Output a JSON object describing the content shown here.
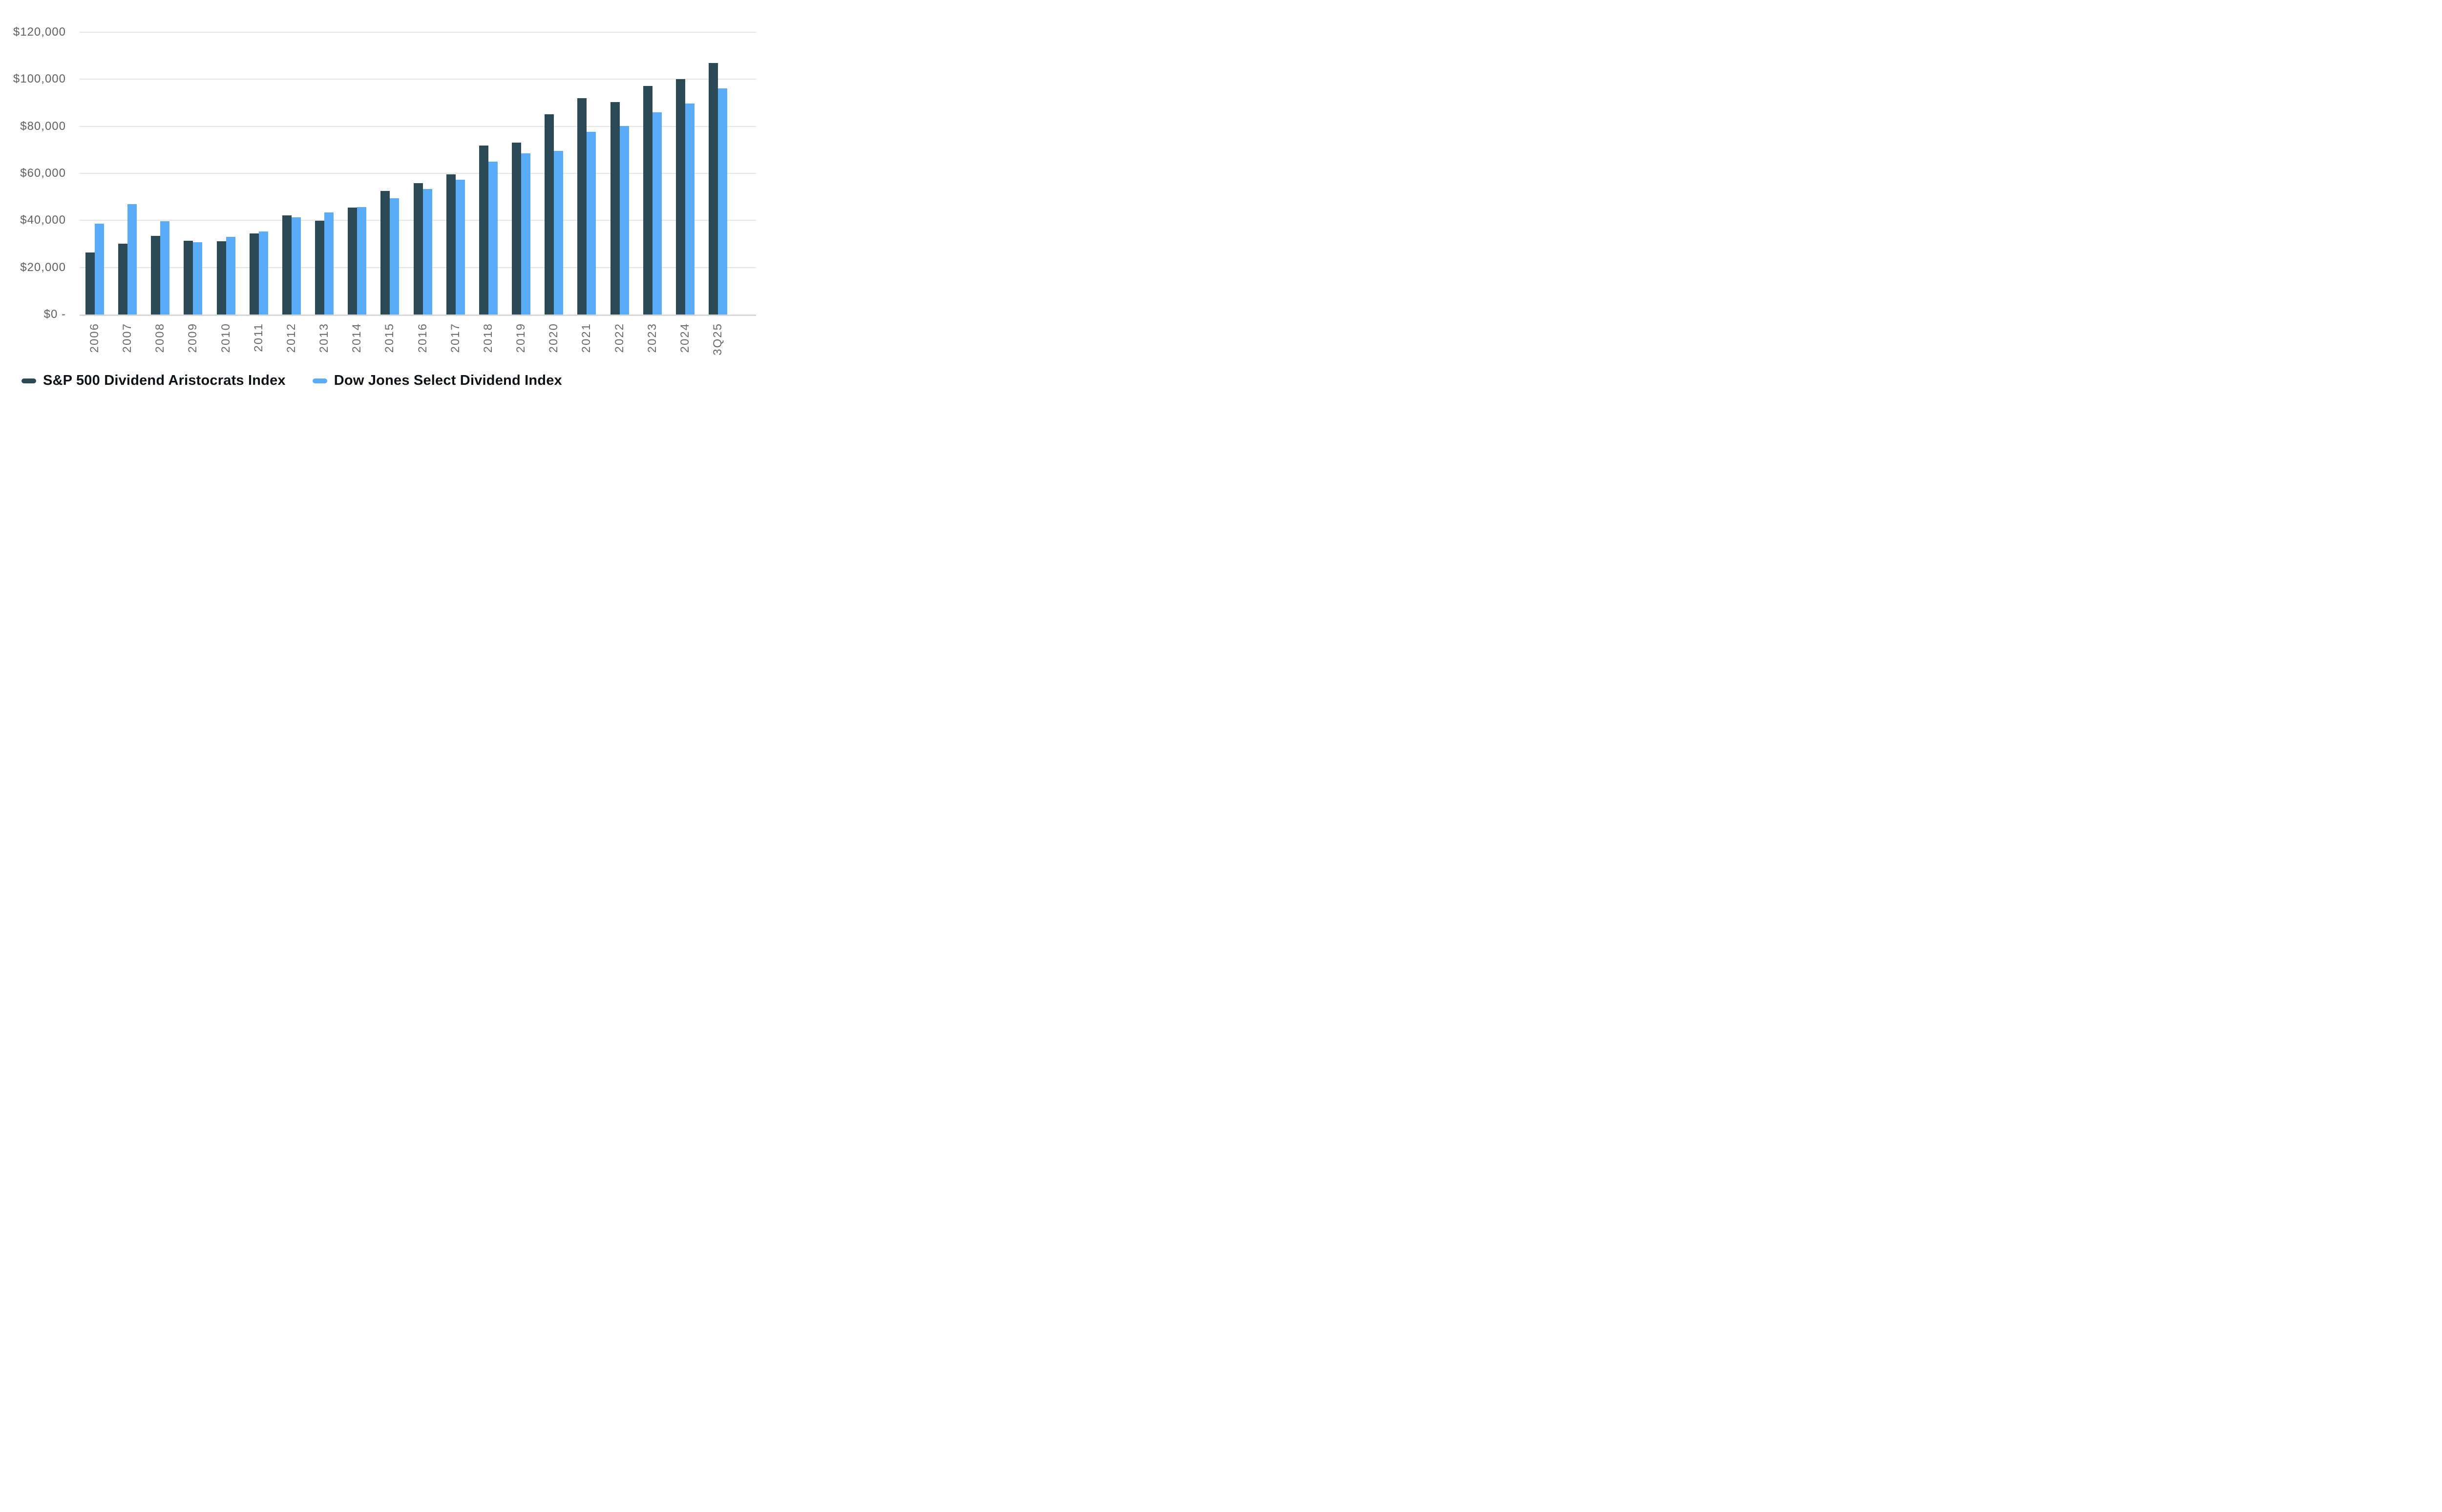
{
  "chart_data": {
    "type": "bar",
    "title": "",
    "xlabel": "",
    "ylabel": "",
    "categories": [
      "2006",
      "2007",
      "2008",
      "2009",
      "2010",
      "2011",
      "2012",
      "2013",
      "2014",
      "2015",
      "2016",
      "2017",
      "2018",
      "2019",
      "2020",
      "2021",
      "2022",
      "2023",
      "2024",
      "3Q25"
    ],
    "series": [
      {
        "name": "S&P 500 Dividend Aristocrats Index",
        "color": "#2b4a56",
        "values": [
          26300,
          30200,
          33500,
          31400,
          31100,
          34500,
          42100,
          39800,
          45400,
          52600,
          55900,
          59600,
          71900,
          73000,
          85100,
          91900,
          90400,
          97100,
          100100,
          106900
        ]
      },
      {
        "name": "Dow Jones Select Dividend Index",
        "color": "#5aacf8",
        "values": [
          38700,
          46900,
          39700,
          30700,
          33100,
          35200,
          41300,
          43400,
          45700,
          49400,
          53400,
          57400,
          65000,
          68500,
          69500,
          77700,
          80100,
          85900,
          89700,
          96200
        ]
      }
    ],
    "ylim": [
      0,
      120000
    ],
    "yticks": [
      {
        "value": 0,
        "label": "$0 -"
      },
      {
        "value": 20000,
        "label": "$20,000"
      },
      {
        "value": 40000,
        "label": "$40,000"
      },
      {
        "value": 60000,
        "label": "$60,000"
      },
      {
        "value": 80000,
        "label": "$80,000"
      },
      {
        "value": 100000,
        "label": "$100,000"
      },
      {
        "value": 120000,
        "label": "$120,000"
      }
    ],
    "grid": "horizontal",
    "legend_position": "bottom-left",
    "colors": {
      "background": "#ffffff",
      "gridline": "#e4e4e4",
      "axis_line": "#d7d7d7",
      "tick_text": "#616161",
      "legend_text": "#0e1216"
    }
  }
}
